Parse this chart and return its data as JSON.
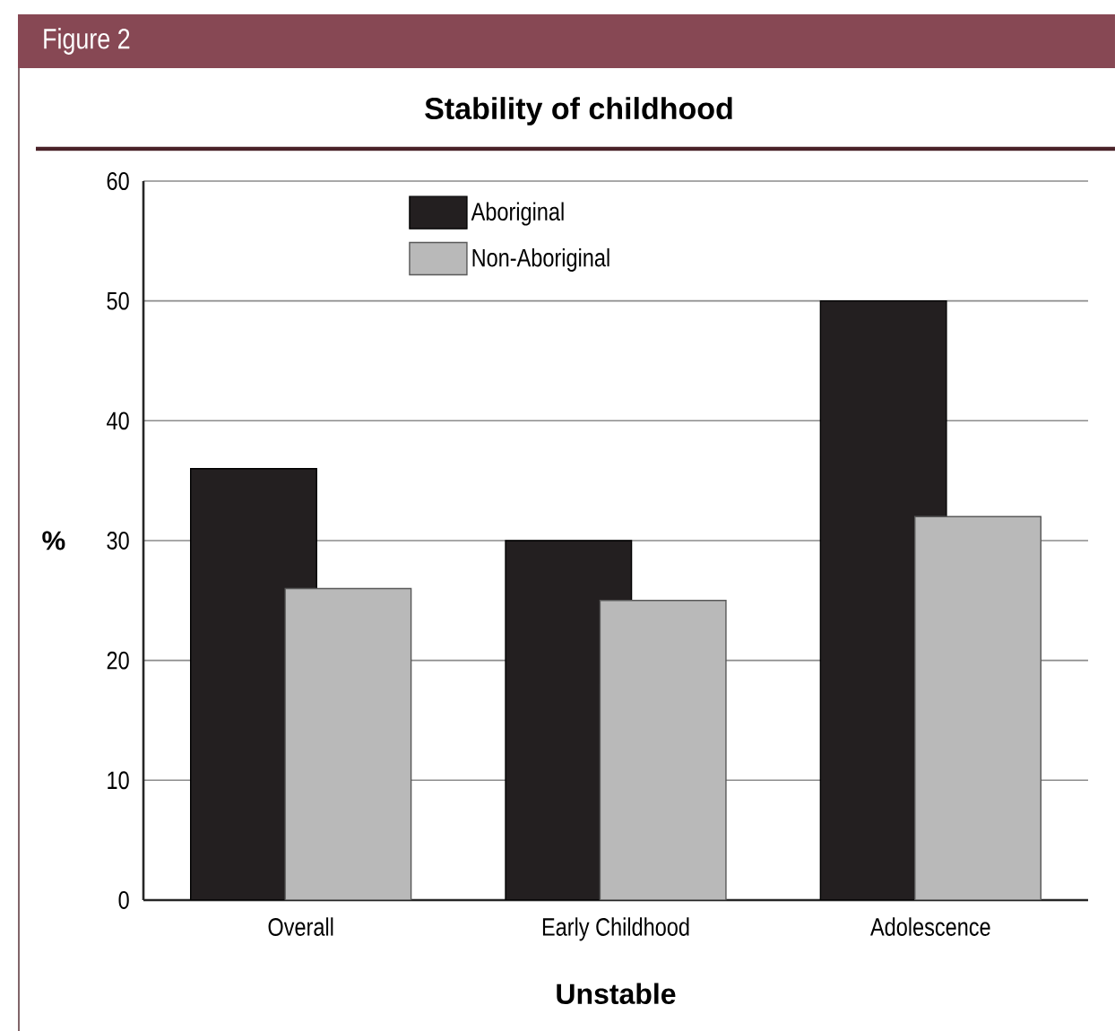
{
  "chart_data": {
    "type": "bar",
    "title": "Stability of childhood",
    "xlabel": "Unstable",
    "ylabel": "%",
    "annotations": [
      "Figure 2"
    ],
    "categories": [
      "Overall",
      "Early Childhood",
      "Adolescence"
    ],
    "series": [
      {
        "name": "Aboriginal",
        "color": "#231f20",
        "values": [
          36,
          30,
          50
        ]
      },
      {
        "name": "Non-Aboriginal",
        "color": "#b9b9b9",
        "values": [
          26,
          25,
          32
        ]
      }
    ],
    "ylim": [
      0,
      60
    ],
    "yticks": [
      0,
      10,
      20,
      30,
      40,
      50,
      60
    ],
    "grid": "y",
    "legend": "top"
  }
}
